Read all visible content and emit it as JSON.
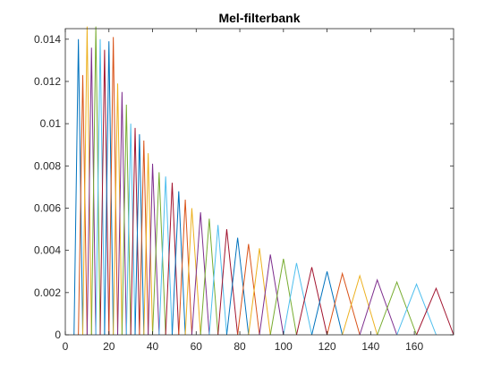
{
  "chart_data": {
    "type": "line",
    "title": "Mel-filterbank",
    "xlabel": "",
    "ylabel": "",
    "xlim": [
      0,
      178
    ],
    "ylim": [
      0,
      0.0145
    ],
    "xticks": [
      0,
      20,
      40,
      60,
      80,
      100,
      120,
      140,
      160
    ],
    "xtick_labels": [
      "0",
      "20",
      "40",
      "60",
      "80",
      "100",
      "120",
      "140",
      "160"
    ],
    "yticks": [
      0,
      0.002,
      0.004,
      0.006,
      0.008,
      0.01,
      0.012,
      0.014
    ],
    "ytick_labels": [
      "0",
      "0.002",
      "0.004",
      "0.006",
      "0.008",
      "0.01",
      "0.012",
      "0.014"
    ],
    "grid": false,
    "legend": "none",
    "palette": [
      "#0072BD",
      "#D95319",
      "#EDB120",
      "#7E2F8E",
      "#77AC30",
      "#4DBEEE",
      "#A2142F"
    ],
    "filter_edges": [
      4,
      6,
      8,
      10,
      12,
      14,
      16,
      18,
      20,
      22,
      24,
      26,
      28,
      30,
      32,
      34,
      36,
      38,
      40,
      43,
      46,
      49,
      52,
      55,
      58,
      62,
      66,
      70,
      74,
      79,
      84,
      89,
      94,
      100,
      106,
      113,
      120,
      127,
      135,
      143,
      152,
      161,
      170,
      178
    ],
    "peaks": [
      0.014,
      0.0123,
      0.0146,
      0.0136,
      0.0146,
      0.014,
      0.0135,
      0.0139,
      0.0141,
      0.0119,
      0.0115,
      0.0109,
      0.01,
      0.0098,
      0.0095,
      0.0092,
      0.0086,
      0.0081,
      0.0077,
      0.0075,
      0.0072,
      0.0068,
      0.0064,
      0.006,
      0.0058,
      0.0055,
      0.0052,
      0.005,
      0.0046,
      0.0043,
      0.0041,
      0.0038,
      0.0036,
      0.0034,
      0.0032,
      0.003,
      0.0029,
      0.0028,
      0.0026,
      0.0025,
      0.0024,
      0.0022
    ]
  }
}
